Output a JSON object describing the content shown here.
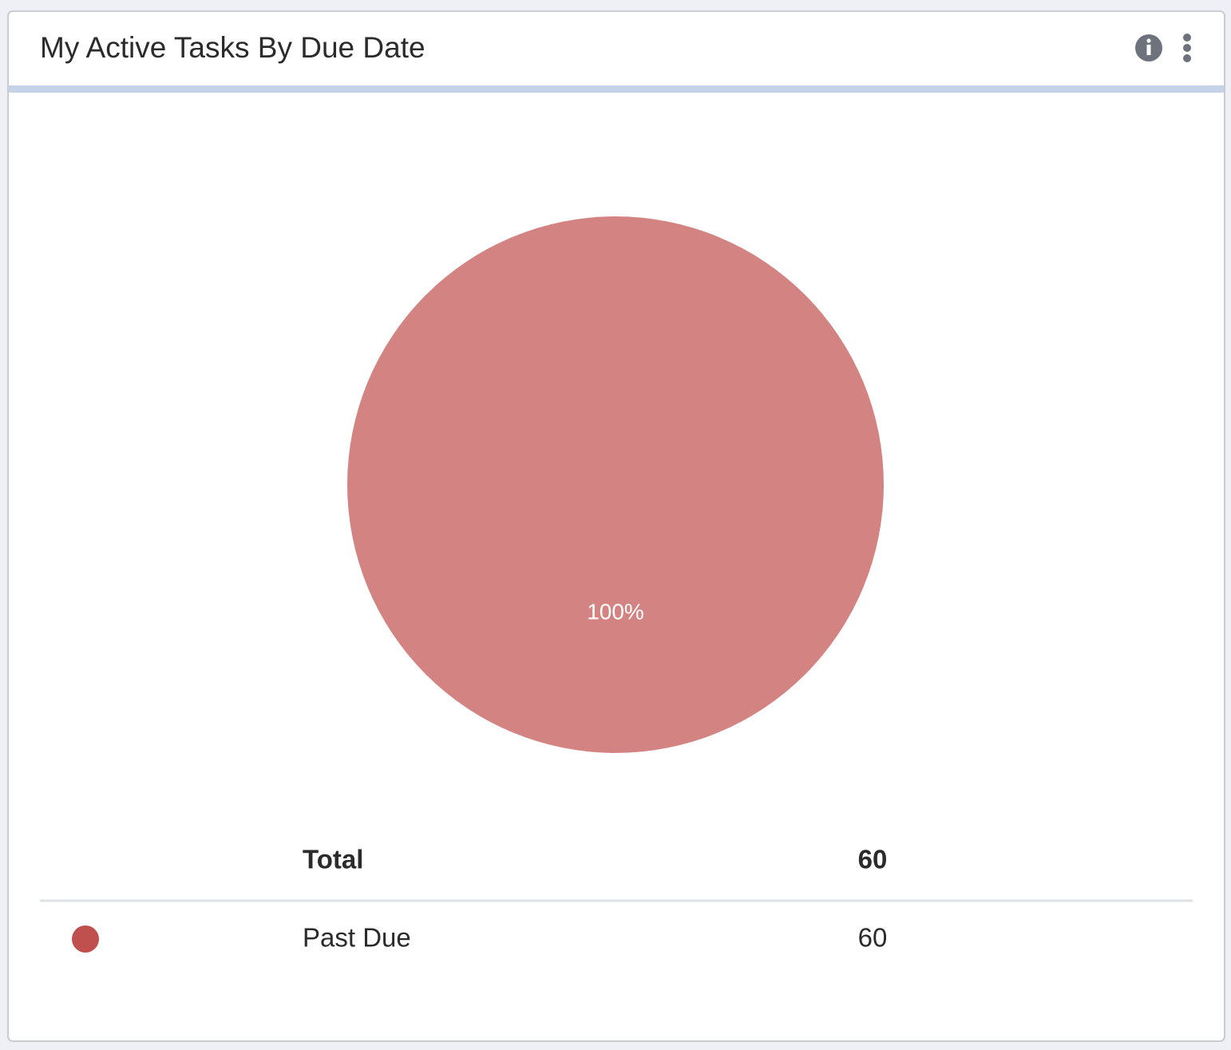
{
  "chart_data": {
    "type": "pie",
    "title": "My Active Tasks By Due Date",
    "categories": [
      "Past Due"
    ],
    "values": [
      100
    ],
    "value_labels": [
      "100%"
    ],
    "colors": [
      "#c0504d"
    ]
  },
  "table": {
    "header": {
      "label": "Total",
      "value": 60
    },
    "rows": [
      {
        "value": 60
      }
    ]
  }
}
